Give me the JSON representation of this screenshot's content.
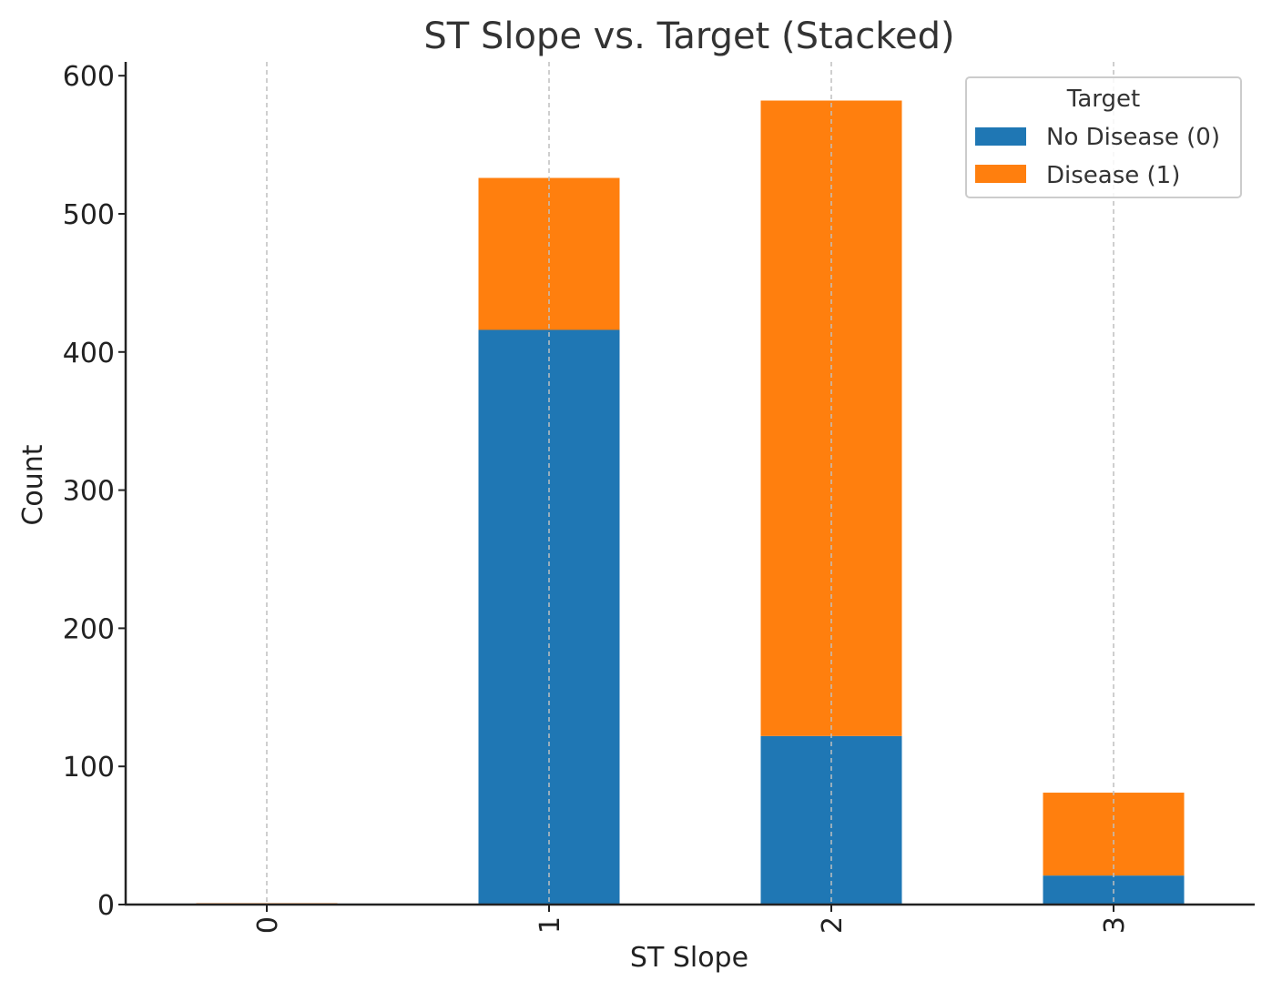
{
  "chart_data": {
    "type": "bar",
    "stacked": true,
    "title": "ST Slope vs. Target (Stacked)",
    "xlabel": "ST Slope",
    "ylabel": "Count",
    "categories": [
      "0",
      "1",
      "2",
      "3"
    ],
    "series": [
      {
        "name": "No Disease (0)",
        "color": "#1f77b4",
        "values": [
          0,
          416,
          122,
          21
        ]
      },
      {
        "name": "Disease (1)",
        "color": "#ff7f0e",
        "values": [
          1,
          110,
          460,
          60
        ]
      }
    ],
    "ylim": [
      0,
      610
    ],
    "yticks": [
      0,
      100,
      200,
      300,
      400,
      500,
      600
    ],
    "grid": "x-dashed",
    "legend": {
      "title": "Target",
      "placement": "top-right"
    }
  }
}
